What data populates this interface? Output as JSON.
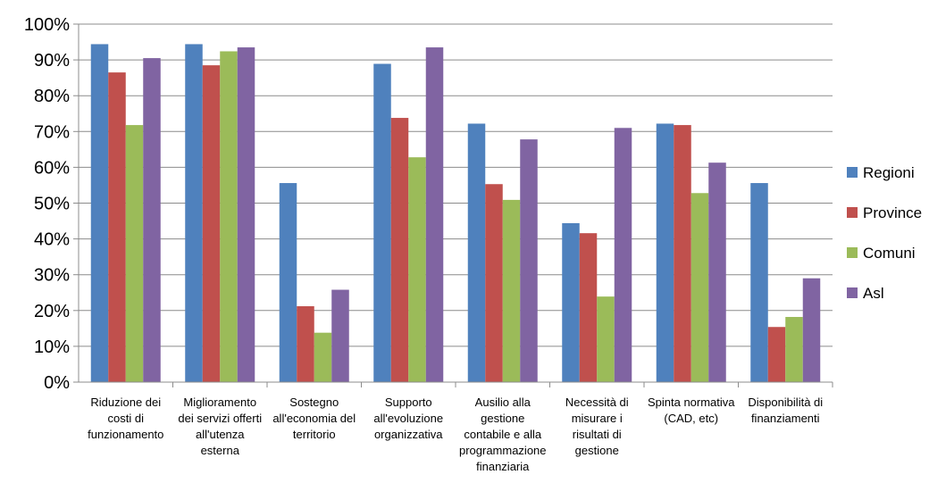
{
  "chart_data": {
    "type": "bar",
    "title": "",
    "xlabel": "",
    "ylabel": "",
    "ylim": [
      0,
      100
    ],
    "y_ticks": [
      "0%",
      "10%",
      "20%",
      "30%",
      "40%",
      "50%",
      "60%",
      "70%",
      "80%",
      "90%",
      "100%"
    ],
    "grid": true,
    "legend_position": "right",
    "categories": [
      [
        "Riduzione dei",
        "costi di",
        "funzionamento"
      ],
      [
        "Miglioramento",
        "dei servizi offerti",
        "all'utenza",
        "esterna"
      ],
      [
        "Sostegno",
        "all'economia del",
        "territorio"
      ],
      [
        "Supporto",
        "all'evoluzione",
        "organizzativa"
      ],
      [
        "Ausilio alla",
        "gestione",
        "contabile e alla",
        "programmazione",
        "finanziaria"
      ],
      [
        "Necessità di",
        "misurare i",
        "risultati di",
        "gestione"
      ],
      [
        "Spinta normativa",
        "(CAD, etc)"
      ],
      [
        "Disponibilità di",
        "finanziamenti"
      ]
    ],
    "series": [
      {
        "name": "Regioni",
        "color": "#4F81BD",
        "values": [
          94.4,
          94.4,
          55.6,
          88.9,
          72.2,
          44.4,
          72.2,
          55.6
        ]
      },
      {
        "name": "Province",
        "color": "#C0504D",
        "values": [
          86.5,
          88.5,
          21.2,
          73.8,
          55.3,
          41.6,
          71.8,
          15.4
        ]
      },
      {
        "name": "Comuni",
        "color": "#9BBB59",
        "values": [
          71.8,
          92.4,
          13.8,
          62.8,
          50.9,
          23.9,
          52.8,
          18.2
        ]
      },
      {
        "name": "Asl",
        "color": "#8064A2",
        "values": [
          90.5,
          93.5,
          25.8,
          93.5,
          67.8,
          71.0,
          61.3,
          29.0
        ]
      }
    ]
  }
}
